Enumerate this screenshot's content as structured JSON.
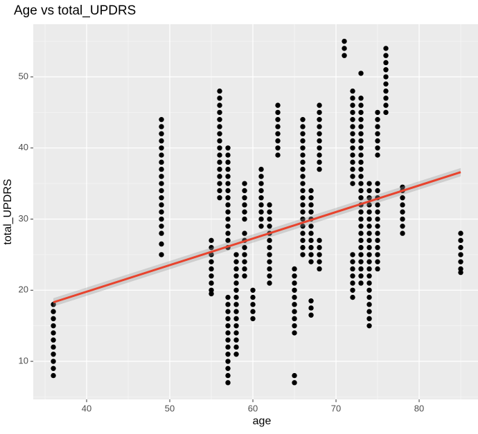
{
  "chart_data": {
    "type": "scatter",
    "title": "Age vs total_UPDRS",
    "x_label": "age",
    "y_label": "total_UPDRS",
    "color": "#000000",
    "x": [
      36,
      36,
      36,
      36,
      36,
      36,
      36,
      36,
      36,
      36,
      36,
      49,
      49,
      49,
      49,
      49,
      49,
      49,
      49,
      49,
      49,
      49,
      49,
      49,
      49,
      49,
      49,
      49,
      49,
      49,
      55,
      55,
      55,
      55,
      55,
      55,
      55,
      55,
      55,
      56,
      56,
      56,
      56,
      56,
      56,
      56,
      56,
      56,
      56,
      56,
      56,
      56,
      56,
      56,
      56,
      57,
      57,
      57,
      57,
      57,
      57,
      57,
      57,
      57,
      57,
      57,
      57,
      57,
      57,
      57,
      57,
      57,
      57,
      57,
      57,
      57,
      57,
      57,
      57,
      57,
      57,
      57,
      57,
      58,
      58,
      58,
      58,
      58,
      58,
      58,
      58,
      58,
      58,
      58,
      58,
      58,
      58,
      58,
      59,
      59,
      59,
      59,
      59,
      59,
      59,
      59,
      59,
      59,
      59,
      59,
      59,
      60,
      60,
      60,
      60,
      60,
      61,
      61,
      61,
      61,
      61,
      61,
      61,
      61,
      61,
      62,
      62,
      62,
      62,
      62,
      62,
      62,
      62,
      62,
      62,
      62,
      62,
      63,
      63,
      63,
      63,
      63,
      63,
      63,
      63,
      65,
      65,
      65,
      65,
      65,
      65,
      65,
      65,
      65,
      65,
      65,
      65,
      66,
      66,
      66,
      66,
      66,
      66,
      66,
      66,
      66,
      66,
      66,
      66,
      66,
      66,
      66,
      66,
      66,
      66,
      66,
      66,
      67,
      67,
      67,
      67,
      67,
      67,
      67,
      67,
      67,
      67,
      67,
      67,
      67,
      67,
      68,
      68,
      68,
      68,
      68,
      68,
      68,
      68,
      68,
      68,
      68,
      68,
      68,
      68,
      68,
      71,
      71,
      71,
      72,
      72,
      72,
      72,
      72,
      72,
      72,
      72,
      72,
      72,
      72,
      72,
      72,
      72,
      72,
      72,
      72,
      72,
      72,
      72,
      72,
      73,
      73,
      73,
      73,
      73,
      73,
      73,
      73,
      73,
      73,
      73,
      73,
      73,
      73,
      73,
      73,
      73,
      73,
      73,
      73,
      73,
      73,
      73,
      73,
      73,
      73,
      73,
      73,
      74,
      74,
      74,
      74,
      74,
      74,
      74,
      74,
      74,
      74,
      74,
      74,
      74,
      74,
      74,
      74,
      74,
      74,
      74,
      74,
      74,
      75,
      75,
      75,
      75,
      75,
      75,
      75,
      75,
      75,
      75,
      75,
      75,
      75,
      75,
      75,
      75,
      75,
      75,
      75,
      75,
      76,
      76,
      76,
      76,
      76,
      76,
      76,
      76,
      76,
      76,
      78,
      78,
      78,
      78,
      78,
      78,
      78,
      78,
      85,
      85,
      85,
      85,
      85,
      85,
      85
    ],
    "y": [
      8,
      9,
      10,
      11,
      12,
      13,
      14,
      15,
      16,
      17,
      18,
      25,
      26.5,
      28,
      29,
      30,
      31,
      32,
      33,
      34,
      35,
      36,
      37,
      38,
      39,
      40,
      41,
      42,
      43,
      44,
      19.5,
      20,
      21,
      22,
      23,
      24,
      25,
      26,
      27,
      33,
      34,
      35,
      36,
      37,
      38,
      39,
      40,
      41,
      42,
      43,
      44,
      45,
      46,
      47,
      48,
      7,
      8,
      9,
      10,
      11,
      12,
      13,
      14,
      15,
      16,
      17,
      18,
      19,
      26,
      27,
      28,
      29,
      30,
      31,
      32,
      33,
      34,
      35,
      36,
      37,
      38,
      39,
      40,
      11,
      12,
      13,
      14,
      15,
      16,
      17,
      18,
      19,
      20,
      21,
      22,
      23,
      24,
      25,
      22,
      23,
      24,
      25,
      26,
      27,
      28,
      30,
      31,
      32,
      33,
      34,
      35,
      16,
      17,
      18,
      19,
      20,
      29,
      30,
      31,
      32,
      33,
      34,
      35,
      36,
      37,
      21,
      22,
      23,
      24,
      25,
      26,
      27,
      28,
      29,
      30,
      31,
      32,
      39,
      40,
      41,
      42,
      43,
      44,
      45,
      46,
      7,
      8,
      14,
      15,
      16,
      17,
      18,
      19,
      20,
      21,
      22,
      23,
      25,
      26,
      27,
      28,
      29,
      30,
      31,
      32,
      33,
      34,
      35,
      36,
      37,
      38,
      39,
      40,
      41,
      42,
      43,
      44,
      16.5,
      17.5,
      18.5,
      24,
      25,
      26,
      27,
      28,
      29,
      30,
      31,
      32,
      33,
      34,
      23,
      24,
      25,
      26,
      27,
      37,
      38,
      39,
      40,
      41,
      42,
      43,
      44,
      45,
      46,
      53,
      54,
      55,
      19,
      20,
      21,
      22,
      23,
      24,
      25,
      35,
      36,
      37,
      38,
      39,
      40,
      41,
      42,
      43,
      44,
      45,
      46,
      47,
      48,
      21,
      22,
      23,
      24,
      25,
      26,
      27,
      28,
      29,
      30,
      31,
      32,
      33,
      34,
      35,
      36,
      37,
      38,
      39,
      40,
      41,
      42,
      43,
      44,
      45,
      46,
      47,
      50.5,
      15,
      16,
      17,
      18,
      19,
      20,
      21,
      22,
      23,
      24,
      25,
      26,
      27,
      28,
      29,
      30,
      31,
      32,
      33,
      34,
      35,
      23,
      24,
      25,
      26,
      27,
      28,
      29,
      30,
      31,
      32,
      33,
      34,
      35,
      39,
      40,
      41,
      42,
      43,
      44,
      45,
      45,
      46,
      47,
      48,
      49,
      50,
      51,
      52,
      53,
      54,
      28,
      29,
      30,
      31,
      32,
      33,
      34,
      34.5,
      22.5,
      23,
      24,
      25,
      26,
      27,
      28
    ],
    "fit": {
      "x": [
        36,
        85
      ],
      "y": [
        18.3,
        36.6
      ],
      "color": "#e8432d"
    },
    "xlim": [
      33.58,
      87.08
    ],
    "xticks": [
      40,
      50,
      60,
      70,
      80
    ],
    "ylim": [
      4.65,
      57.4
    ],
    "yticks": [
      10,
      20,
      30,
      40,
      50
    ],
    "grid": true
  }
}
